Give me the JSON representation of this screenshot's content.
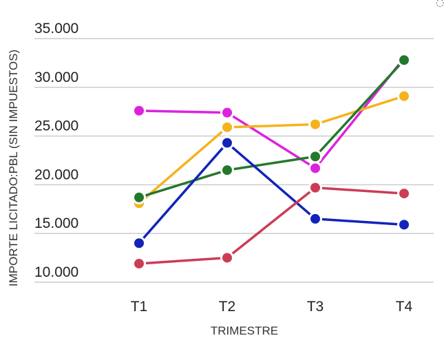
{
  "chart_data": {
    "type": "line",
    "title": "",
    "xlabel": "TRIMESTRE",
    "ylabel": "IMPORTE LICITADO:PBL (SIN IMPUESTOS)",
    "categories": [
      "T1",
      "T2",
      "T3",
      "T4"
    ],
    "ylim": [
      9000,
      36000
    ],
    "yticks": [
      10000,
      15000,
      20000,
      25000,
      30000,
      35000
    ],
    "ytick_labels": [
      "10.000",
      "15.000",
      "20.000",
      "25.000",
      "30.000",
      "35.000"
    ],
    "grid": true,
    "legend": "none",
    "series": [
      {
        "color": "#dd22dd",
        "values": [
          27600,
          27400,
          21700,
          33000
        ]
      },
      {
        "color": "#f5b21c",
        "values": [
          18100,
          25900,
          26200,
          29100
        ]
      },
      {
        "color": "#23782b",
        "values": [
          18700,
          21500,
          22900,
          32800
        ]
      },
      {
        "color": "#1124b9",
        "values": [
          14000,
          24300,
          16500,
          15900
        ]
      },
      {
        "color": "#cc3c55",
        "values": [
          11900,
          12500,
          19700,
          19100
        ]
      }
    ]
  }
}
